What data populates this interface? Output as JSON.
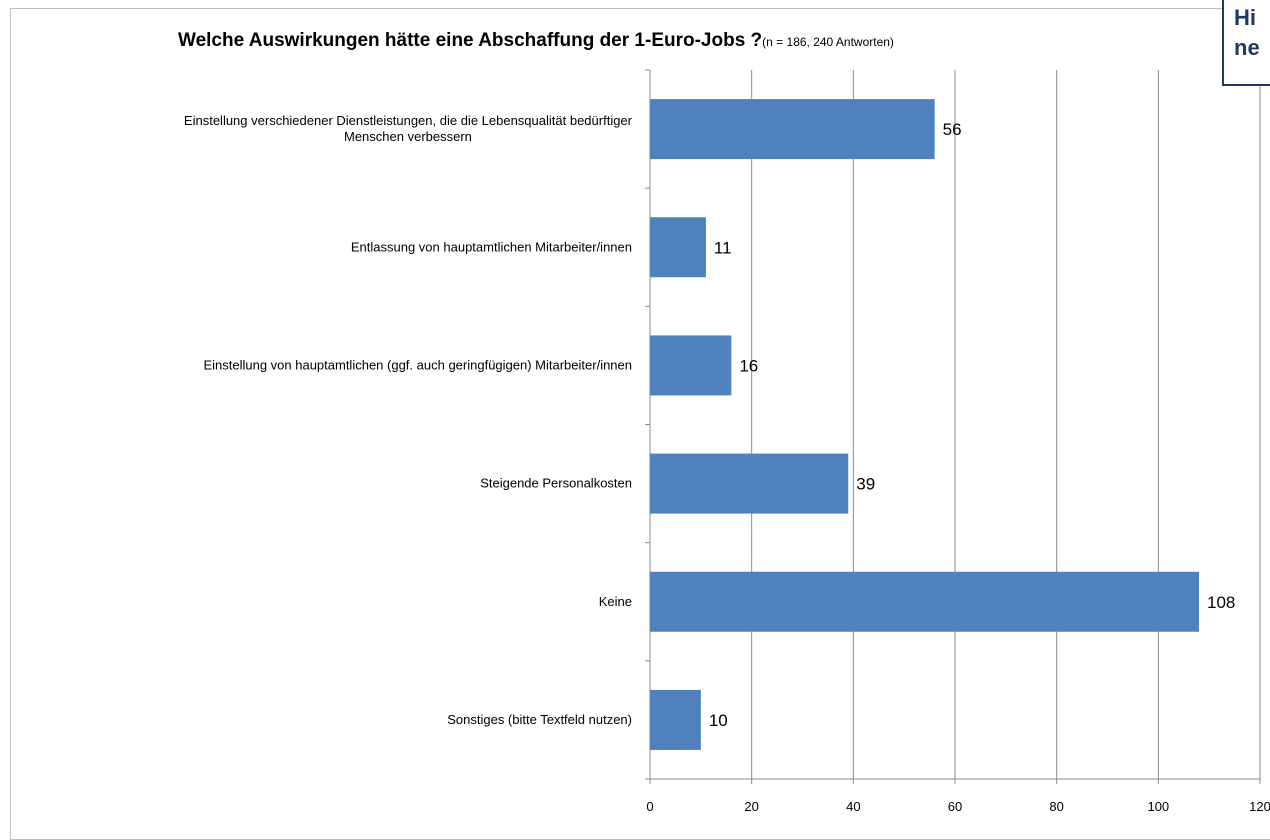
{
  "chart_data": {
    "type": "bar",
    "orientation": "horizontal",
    "title": "Welche Auswirkungen hätte eine Abschaffung der 1-Euro-Jobs ?",
    "subtitle": "(n = 186,  240 Antworten)",
    "categories": [
      [
        "Einstellung verschiedener Dienstleistungen, die die Lebensqualität bedürftiger",
        "Menschen verbessern"
      ],
      [
        "Entlassung von hauptamtlichen Mitarbeiter/innen"
      ],
      [
        "Einstellung von hauptamtlichen (ggf. auch geringfügigen) Mitarbeiter/innen"
      ],
      [
        "Steigende Personalkosten"
      ],
      [
        "Keine"
      ],
      [
        "Sonstiges (bitte Textfeld nutzen)"
      ]
    ],
    "values": [
      56,
      11,
      16,
      39,
      108,
      10
    ],
    "xlim": [
      0,
      120
    ],
    "ticks": [
      "0",
      "20",
      "40",
      "60",
      "80",
      "100",
      "120"
    ],
    "xlabel": "",
    "ylabel": "",
    "grid": "vertical",
    "bar_color": "#4f81bd",
    "legend": "none"
  },
  "callout": {
    "line1": "Hi",
    "line2": "ne"
  }
}
